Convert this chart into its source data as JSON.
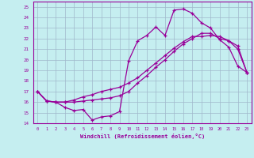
{
  "xlabel": "Windchill (Refroidissement éolien,°C)",
  "x_ticks": [
    0,
    1,
    2,
    3,
    4,
    5,
    6,
    7,
    8,
    9,
    10,
    11,
    12,
    13,
    14,
    15,
    16,
    17,
    18,
    19,
    20,
    21,
    22,
    23
  ],
  "ylim": [
    14,
    25.5
  ],
  "yticks": [
    14,
    15,
    16,
    17,
    18,
    19,
    20,
    21,
    22,
    23,
    24,
    25
  ],
  "bg_color": "#c5eef0",
  "grid_color": "#a0b8cc",
  "line_color": "#990099",
  "series": [
    [
      17.0,
      16.1,
      16.0,
      15.5,
      15.2,
      15.3,
      14.3,
      14.6,
      14.7,
      15.1,
      19.9,
      21.8,
      22.3,
      23.1,
      22.3,
      24.7,
      24.8,
      24.4,
      23.5,
      23.0,
      21.9,
      21.2,
      19.4,
      18.8
    ],
    [
      17.0,
      16.1,
      16.0,
      16.0,
      16.0,
      16.1,
      16.2,
      16.3,
      16.4,
      16.6,
      17.0,
      17.8,
      18.5,
      19.3,
      20.0,
      20.8,
      21.5,
      22.0,
      22.5,
      22.5,
      22.0,
      21.8,
      21.0,
      18.8
    ],
    [
      17.0,
      16.1,
      16.0,
      16.0,
      16.2,
      16.5,
      16.7,
      17.0,
      17.2,
      17.4,
      17.8,
      18.3,
      19.0,
      19.7,
      20.4,
      21.1,
      21.7,
      22.2,
      22.2,
      22.3,
      22.2,
      21.8,
      21.3,
      18.8
    ]
  ]
}
